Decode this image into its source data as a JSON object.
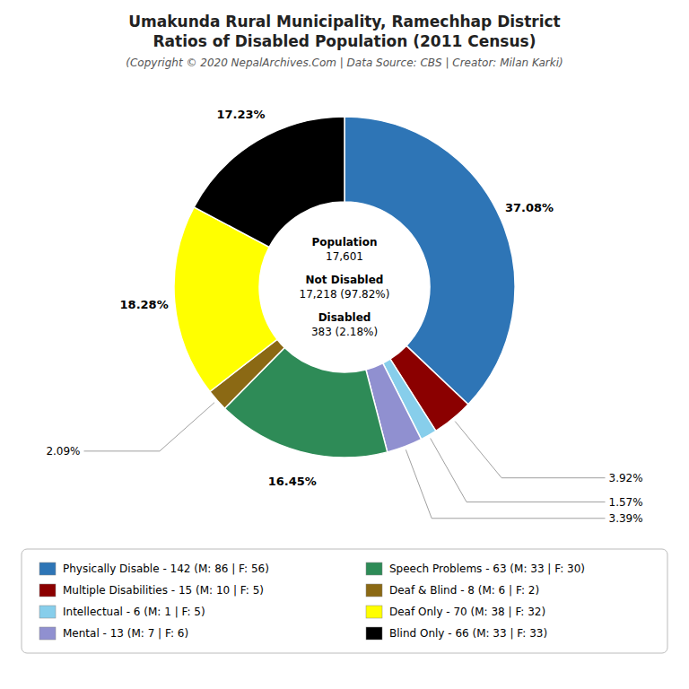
{
  "chart_data": {
    "type": "pie",
    "title": [
      "Umakunda Rural Municipality, Ramechhap District",
      "Ratios of Disabled Population (2011 Census)"
    ],
    "subtitle": "(Copyright © 2020 NepalArchives.Com | Data Source: CBS | Creator: Milan Karki)",
    "categories": [
      "Physically Disable - 142 (M: 86 | F: 56)",
      "Multiple Disabilities - 15 (M: 10 | F: 5)",
      "Intellectual - 6 (M: 1 | F: 5)",
      "Mental - 13 (M: 7 | F: 6)",
      "Speech Problems - 63 (M: 33 | F: 30)",
      "Deaf & Blind - 8 (M: 6 | F: 2)",
      "Deaf Only - 70 (M: 38 | F: 32)",
      "Blind Only - 66 (M: 33 | F: 33)"
    ],
    "values": [
      37.08,
      3.92,
      1.57,
      3.39,
      16.45,
      2.09,
      18.28,
      17.23
    ],
    "value_labels": [
      "37.08%",
      "3.92%",
      "1.57%",
      "3.39%",
      "16.45%",
      "2.09%",
      "18.28%",
      "17.23%"
    ],
    "colors": [
      "#2e75b6",
      "#8b0000",
      "#87ceeb",
      "#9090d0",
      "#2e8b57",
      "#8b6914",
      "#ffff00",
      "#000000"
    ],
    "annotations": [
      "Population\n17,601",
      "Not Disabled\n17,218 (97.82%)",
      "Disabled\n383 (2.18%)"
    ],
    "data_labels": true,
    "legend": "bottom"
  }
}
